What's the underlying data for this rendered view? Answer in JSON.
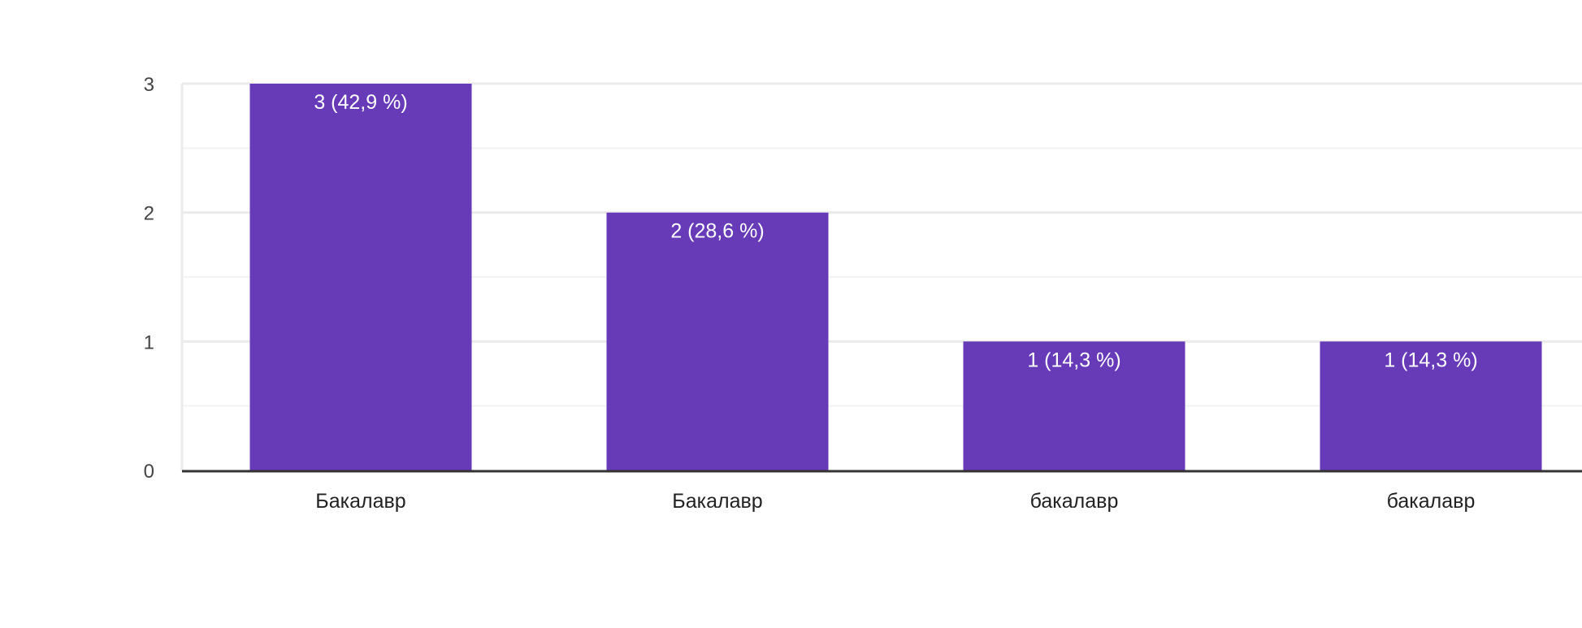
{
  "chart_data": {
    "type": "bar",
    "categories": [
      "Бакалавр",
      "Бакалавр",
      "бакалавр",
      "бакалавр"
    ],
    "values": [
      3,
      2,
      1,
      1
    ],
    "data_labels": [
      "3 (42,9 %)",
      "2 (28,6 %)",
      "1 (14,3 %)",
      "1 (14,3 %)"
    ],
    "title": "",
    "xlabel": "",
    "ylabel": "",
    "ylim": [
      0,
      3
    ],
    "yticks": [
      0,
      1,
      2,
      3
    ],
    "ytick_labels": [
      "0",
      "1",
      "2",
      "3"
    ],
    "minor_gridlines": true,
    "grid": true,
    "legend": "none"
  },
  "colors": {
    "bar": "#673AB7",
    "gridline": "#EBEBEB",
    "minor_gridline": "#F3F3F3",
    "baseline": "#333333",
    "tick_text": "#444444",
    "category_text": "#222222",
    "data_label_text": "#FFFFFF"
  }
}
